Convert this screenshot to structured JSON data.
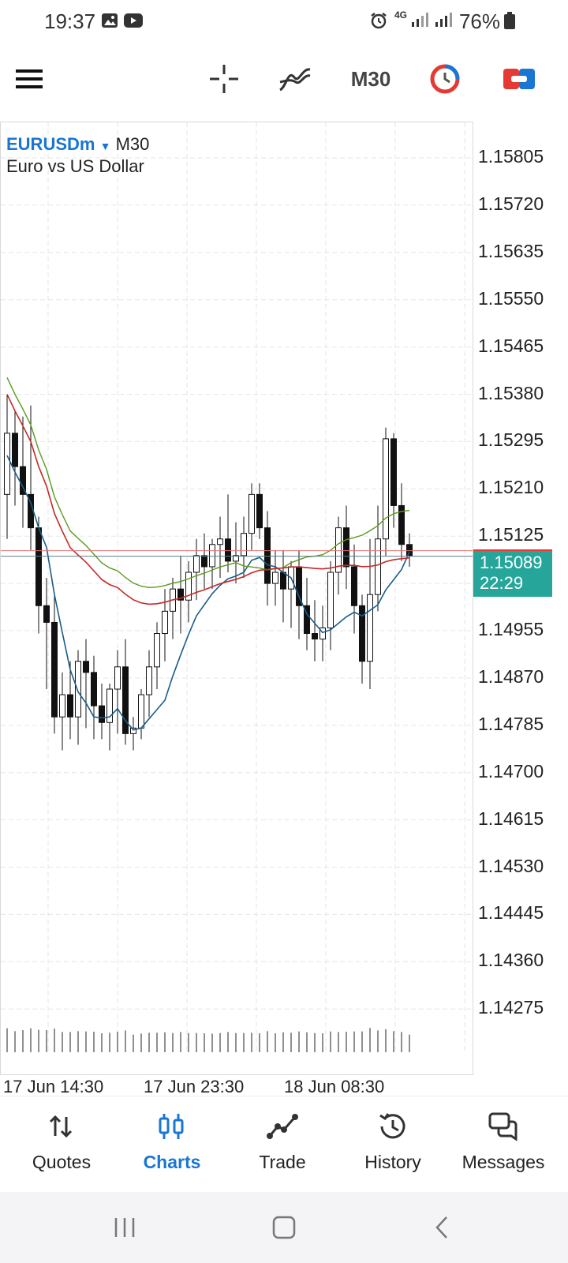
{
  "status_bar": {
    "time": "19:37",
    "battery": "76%",
    "network": "4G"
  },
  "toolbar": {
    "timeframe": "M30"
  },
  "chart": {
    "symbol": "EURUSDm",
    "timeframe": "M30",
    "description": "Euro vs US Dollar",
    "current_price": "1.15089",
    "timer": "22:29"
  },
  "chart_data": {
    "type": "candlestick",
    "y_ticks": [
      "1.15805",
      "1.15720",
      "1.15635",
      "1.15550",
      "1.15465",
      "1.15380",
      "1.15295",
      "1.15210",
      "1.15125",
      "1.15040",
      "1.14955",
      "1.14870",
      "1.14785",
      "1.14700",
      "1.14615",
      "1.14530",
      "1.14445",
      "1.14360",
      "1.14275"
    ],
    "x_ticks": [
      "17 Jun 14:30",
      "17 Jun 23:30",
      "18 Jun 08:30"
    ],
    "ylim": [
      1.142,
      1.1586
    ],
    "candles": [
      [
        1.152,
        1.1538,
        1.1512,
        1.1531
      ],
      [
        1.1531,
        1.1535,
        1.1518,
        1.1525
      ],
      [
        1.1525,
        1.1534,
        1.1514,
        1.152
      ],
      [
        1.152,
        1.1536,
        1.151,
        1.1514
      ],
      [
        1.1514,
        1.1516,
        1.1495,
        1.15
      ],
      [
        1.15,
        1.1505,
        1.1485,
        1.1497
      ],
      [
        1.1497,
        1.1502,
        1.1477,
        1.148
      ],
      [
        1.148,
        1.1488,
        1.1474,
        1.1484
      ],
      [
        1.1484,
        1.149,
        1.1476,
        1.148
      ],
      [
        1.148,
        1.1492,
        1.1475,
        1.149
      ],
      [
        1.149,
        1.1494,
        1.1478,
        1.1488
      ],
      [
        1.1488,
        1.1491,
        1.1476,
        1.1482
      ],
      [
        1.1482,
        1.1486,
        1.1476,
        1.1479
      ],
      [
        1.1479,
        1.1486,
        1.1474,
        1.1485
      ],
      [
        1.1485,
        1.1492,
        1.1477,
        1.1489
      ],
      [
        1.1489,
        1.1494,
        1.1475,
        1.1477
      ],
      [
        1.1477,
        1.148,
        1.1474,
        1.1478
      ],
      [
        1.1478,
        1.1485,
        1.1476,
        1.1484
      ],
      [
        1.1484,
        1.1492,
        1.148,
        1.1489
      ],
      [
        1.1489,
        1.1497,
        1.1485,
        1.1495
      ],
      [
        1.1495,
        1.1503,
        1.149,
        1.1499
      ],
      [
        1.1499,
        1.1505,
        1.1494,
        1.1503
      ],
      [
        1.1503,
        1.1509,
        1.1495,
        1.1501
      ],
      [
        1.1501,
        1.1508,
        1.1497,
        1.1506
      ],
      [
        1.1506,
        1.1512,
        1.1501,
        1.1509
      ],
      [
        1.1509,
        1.1513,
        1.1503,
        1.1507
      ],
      [
        1.1507,
        1.1512,
        1.1503,
        1.1511
      ],
      [
        1.1511,
        1.1516,
        1.1505,
        1.1512
      ],
      [
        1.1512,
        1.152,
        1.1506,
        1.1508
      ],
      [
        1.1508,
        1.1515,
        1.1504,
        1.1509
      ],
      [
        1.1509,
        1.1516,
        1.1505,
        1.1513
      ],
      [
        1.1513,
        1.1522,
        1.151,
        1.152
      ],
      [
        1.152,
        1.1522,
        1.1512,
        1.1514
      ],
      [
        1.1514,
        1.1517,
        1.15,
        1.1504
      ],
      [
        1.1504,
        1.151,
        1.15,
        1.1506
      ],
      [
        1.1506,
        1.151,
        1.1497,
        1.1503
      ],
      [
        1.1503,
        1.1508,
        1.1496,
        1.1507
      ],
      [
        1.1507,
        1.151,
        1.1494,
        1.15
      ],
      [
        1.15,
        1.1505,
        1.1492,
        1.1495
      ],
      [
        1.1495,
        1.1501,
        1.149,
        1.1494
      ],
      [
        1.1494,
        1.15,
        1.149,
        1.1496
      ],
      [
        1.1496,
        1.1508,
        1.1492,
        1.1506
      ],
      [
        1.1506,
        1.1516,
        1.1502,
        1.1514
      ],
      [
        1.1514,
        1.1518,
        1.1503,
        1.1507
      ],
      [
        1.1507,
        1.1511,
        1.1495,
        1.15
      ],
      [
        1.15,
        1.1502,
        1.1486,
        1.149
      ],
      [
        1.149,
        1.1512,
        1.1485,
        1.1502
      ],
      [
        1.1502,
        1.1518,
        1.1499,
        1.1512
      ],
      [
        1.1512,
        1.1532,
        1.1509,
        1.153
      ],
      [
        1.153,
        1.1531,
        1.1514,
        1.1518
      ],
      [
        1.1518,
        1.1522,
        1.1508,
        1.1511
      ],
      [
        1.1511,
        1.1513,
        1.1507,
        1.1509
      ]
    ]
  },
  "nav": {
    "quotes": "Quotes",
    "charts": "Charts",
    "trade": "Trade",
    "history": "History",
    "messages": "Messages"
  }
}
